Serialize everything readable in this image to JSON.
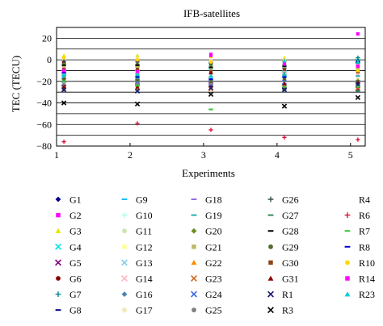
{
  "chart_data": {
    "type": "scatter",
    "title": "IFB-satellites",
    "xlabel": "Experiments",
    "ylabel": "TEC (TECU)",
    "xlim": [
      1,
      5.2
    ],
    "ylim": [
      -80,
      30
    ],
    "xticks": [
      1,
      2,
      3,
      4,
      5
    ],
    "yticks": [
      20,
      0,
      -20,
      -40,
      -60,
      -80
    ],
    "grid": "horizontal",
    "legend_position": "below",
    "x": [
      1.1,
      2.1,
      3.1,
      4.1,
      5.1
    ],
    "series": [
      {
        "name": "G1",
        "color": "#00008b",
        "marker": "diamond",
        "values": [
          -3,
          -4,
          -2,
          -4,
          -3
        ]
      },
      {
        "name": "G2",
        "color": "#ff00ff",
        "marker": "square",
        "values": [
          -8,
          -10,
          5,
          -6,
          24
        ]
      },
      {
        "name": "G3",
        "color": "#e5e500",
        "marker": "triangle",
        "values": [
          4,
          4,
          3,
          2,
          1
        ]
      },
      {
        "name": "G4",
        "color": "#00e5e5",
        "marker": "x",
        "values": [
          -12,
          -11,
          -7,
          -9,
          -1
        ]
      },
      {
        "name": "G5",
        "color": "#800080",
        "marker": "x",
        "values": [
          -22,
          -21,
          -23,
          -24,
          -27
        ]
      },
      {
        "name": "G6",
        "color": "#8b0000",
        "marker": "circle",
        "values": [
          -2,
          -1,
          -4,
          -2,
          -6
        ]
      },
      {
        "name": "G7",
        "color": "#008b8b",
        "marker": "plus",
        "values": [
          -14,
          -14,
          -13,
          -12,
          2
        ]
      },
      {
        "name": "G8",
        "color": "#00008b",
        "marker": "dash",
        "values": [
          -24,
          -24,
          -25,
          -26,
          -29
        ]
      },
      {
        "name": "G9",
        "color": "#00bfff",
        "marker": "dash",
        "values": [
          -16,
          -17,
          -18,
          -15,
          0
        ]
      },
      {
        "name": "G10",
        "color": "#aaffdd",
        "marker": "plus",
        "values": [
          -6,
          -7,
          -6,
          -7,
          -2
        ]
      },
      {
        "name": "G11",
        "color": "#c8e6b4",
        "marker": "circle",
        "values": [
          -20,
          -22,
          -20,
          -19,
          -18
        ]
      },
      {
        "name": "G12",
        "color": "#ffff99",
        "marker": "square",
        "values": [
          -10,
          -8,
          -6,
          -10,
          -12
        ]
      },
      {
        "name": "G13",
        "color": "#87ceeb",
        "marker": "x",
        "values": [
          -13,
          -22,
          -18,
          -18,
          -22
        ]
      },
      {
        "name": "G14",
        "color": "#ffb6c1",
        "marker": "x",
        "values": [
          -11,
          -12,
          -14,
          -10,
          -14
        ]
      },
      {
        "name": "G16",
        "color": "#4682b4",
        "marker": "diamond",
        "values": [
          -5,
          -7,
          -10,
          -5,
          -8
        ]
      },
      {
        "name": "G17",
        "color": "#eee8aa",
        "marker": "star",
        "values": [
          0,
          1,
          -1,
          0,
          -3
        ]
      },
      {
        "name": "G18",
        "color": "#9370db",
        "marker": "dash",
        "values": [
          -9,
          -6,
          -3,
          -8,
          -5
        ]
      },
      {
        "name": "G19",
        "color": "#20b2aa",
        "marker": "dash",
        "values": [
          -15,
          -15,
          -16,
          -14,
          -15
        ]
      },
      {
        "name": "G20",
        "color": "#6b8e23",
        "marker": "diamond",
        "values": [
          -4,
          -4,
          -5,
          -4,
          -7
        ]
      },
      {
        "name": "G21",
        "color": "#bdb76b",
        "marker": "square",
        "values": [
          -7,
          -6,
          -8,
          -7,
          -9
        ]
      },
      {
        "name": "G22",
        "color": "#ff8c00",
        "marker": "triangle",
        "values": [
          -17,
          -18,
          -19,
          -17,
          -19
        ]
      },
      {
        "name": "G23",
        "color": "#d2691e",
        "marker": "x",
        "values": [
          -27,
          -26,
          -27,
          -25,
          -26
        ]
      },
      {
        "name": "G24",
        "color": "#4169e1",
        "marker": "x",
        "values": [
          -19,
          -20,
          -21,
          -21,
          -21
        ]
      },
      {
        "name": "G25",
        "color": "#808080",
        "marker": "circle",
        "values": [
          -23,
          -23,
          -22,
          -23,
          -24
        ]
      },
      {
        "name": "G26",
        "color": "#2f4f4f",
        "marker": "plus",
        "values": [
          -1,
          -2,
          -3,
          -1,
          -1
        ]
      },
      {
        "name": "G27",
        "color": "#2e8b57",
        "marker": "dash",
        "values": [
          -26,
          -28,
          -46,
          -28,
          -29
        ]
      },
      {
        "name": "G28",
        "color": "#000000",
        "marker": "dash",
        "values": [
          -5,
          -5,
          -7,
          -6,
          -3
        ]
      },
      {
        "name": "G29",
        "color": "#556b2f",
        "marker": "circle",
        "values": [
          -18,
          -19,
          -20,
          -18,
          -20
        ]
      },
      {
        "name": "G30",
        "color": "#8b4513",
        "marker": "square",
        "values": [
          -9,
          -9,
          -11,
          -9,
          -11
        ]
      },
      {
        "name": "G31",
        "color": "#8b0000",
        "marker": "triangle",
        "values": [
          -25,
          -25,
          -12,
          -22,
          -21
        ]
      },
      {
        "name": "R1",
        "color": "#191970",
        "marker": "x",
        "values": [
          -28,
          -29,
          -26,
          -28,
          -23
        ]
      },
      {
        "name": "R3",
        "color": "#000000",
        "marker": "x",
        "values": [
          -40,
          -41,
          -32,
          -43,
          -35
        ]
      },
      {
        "name": "R4",
        "color": "#d3d3d3",
        "marker": "none",
        "values": [
          -30,
          -31,
          -29,
          -30,
          -32
        ]
      },
      {
        "name": "R6",
        "color": "#dc143c",
        "marker": "plus",
        "values": [
          -76,
          -59,
          -65,
          -72,
          -74
        ]
      },
      {
        "name": "R7",
        "color": "#32cd32",
        "marker": "dash",
        "values": [
          -20,
          -24,
          -46,
          -25,
          -25
        ]
      },
      {
        "name": "R8",
        "color": "#0000cd",
        "marker": "dash",
        "values": [
          -12,
          -16,
          -18,
          -16,
          -2
        ]
      },
      {
        "name": "R10",
        "color": "#ffd700",
        "marker": "circle",
        "values": [
          2,
          0,
          -2,
          -1,
          -10
        ]
      },
      {
        "name": "R14",
        "color": "#ff00ff",
        "marker": "square",
        "values": [
          -10,
          -11,
          4,
          -4,
          -6
        ]
      },
      {
        "name": "R23",
        "color": "#00ced1",
        "marker": "triangle",
        "values": [
          -14,
          -13,
          -15,
          -1,
          -2
        ]
      }
    ]
  }
}
